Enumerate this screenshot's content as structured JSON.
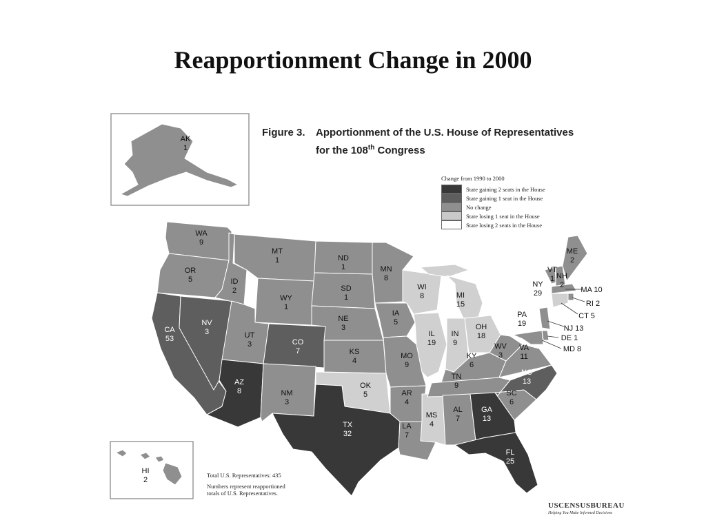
{
  "slide": {
    "title": "Reapportionment Change in 2000"
  },
  "figure": {
    "label": "Figure 3.",
    "title_line1": "Apportionment of the U.S. House of Representatives",
    "title_line2_prefix": "for the 108",
    "title_line2_sup": "th",
    "title_line2_suffix": " Congress"
  },
  "legend": {
    "title": "Change from 1990 to 2000",
    "items": [
      {
        "label": "State gaining 2 seats in the House",
        "color": "#383838"
      },
      {
        "label": "State gaining 1 seat in the House",
        "color": "#5e5e5e"
      },
      {
        "label": "No change",
        "color": "#8f8f8f"
      },
      {
        "label": "State losing 1 seat in the House",
        "color": "#c9c9c9"
      },
      {
        "label": "State losing 2 seats in the House",
        "color": "#ffffff"
      }
    ]
  },
  "footnote": {
    "total": "Total U.S. Representatives: 435",
    "note_line1": "Numbers represent reapportioned",
    "note_line2": "totals of U.S. Representatives."
  },
  "logo": {
    "name": "USCENSUSBUREAU",
    "tagline": "Helping You Make Informed Decisions"
  },
  "states": [
    {
      "abbr": "AK",
      "seats": "1",
      "change": "none"
    },
    {
      "abbr": "HI",
      "seats": "2",
      "change": "none"
    },
    {
      "abbr": "WA",
      "seats": "9",
      "change": "none"
    },
    {
      "abbr": "OR",
      "seats": "5",
      "change": "none"
    },
    {
      "abbr": "CA",
      "seats": "53",
      "change": "gain1"
    },
    {
      "abbr": "NV",
      "seats": "3",
      "change": "gain1"
    },
    {
      "abbr": "ID",
      "seats": "2",
      "change": "none"
    },
    {
      "abbr": "MT",
      "seats": "1",
      "change": "none"
    },
    {
      "abbr": "WY",
      "seats": "1",
      "change": "none"
    },
    {
      "abbr": "UT",
      "seats": "3",
      "change": "none"
    },
    {
      "abbr": "AZ",
      "seats": "8",
      "change": "gain2"
    },
    {
      "abbr": "CO",
      "seats": "7",
      "change": "gain1"
    },
    {
      "abbr": "NM",
      "seats": "3",
      "change": "none"
    },
    {
      "abbr": "ND",
      "seats": "1",
      "change": "none"
    },
    {
      "abbr": "SD",
      "seats": "1",
      "change": "none"
    },
    {
      "abbr": "NE",
      "seats": "3",
      "change": "none"
    },
    {
      "abbr": "KS",
      "seats": "4",
      "change": "none"
    },
    {
      "abbr": "OK",
      "seats": "5",
      "change": "lose1"
    },
    {
      "abbr": "TX",
      "seats": "32",
      "change": "gain2"
    },
    {
      "abbr": "MN",
      "seats": "8",
      "change": "none"
    },
    {
      "abbr": "IA",
      "seats": "5",
      "change": "none"
    },
    {
      "abbr": "MO",
      "seats": "9",
      "change": "none"
    },
    {
      "abbr": "AR",
      "seats": "4",
      "change": "none"
    },
    {
      "abbr": "LA",
      "seats": "7",
      "change": "none"
    },
    {
      "abbr": "WI",
      "seats": "8",
      "change": "lose1"
    },
    {
      "abbr": "IL",
      "seats": "19",
      "change": "lose1"
    },
    {
      "abbr": "MS",
      "seats": "4",
      "change": "lose1"
    },
    {
      "abbr": "MI",
      "seats": "15",
      "change": "lose1"
    },
    {
      "abbr": "IN",
      "seats": "9",
      "change": "lose1"
    },
    {
      "abbr": "OH",
      "seats": "18",
      "change": "lose1"
    },
    {
      "abbr": "KY",
      "seats": "6",
      "change": "none"
    },
    {
      "abbr": "TN",
      "seats": "9",
      "change": "none"
    },
    {
      "abbr": "AL",
      "seats": "7",
      "change": "none"
    },
    {
      "abbr": "GA",
      "seats": "13",
      "change": "gain2"
    },
    {
      "abbr": "FL",
      "seats": "25",
      "change": "gain2"
    },
    {
      "abbr": "SC",
      "seats": "6",
      "change": "none"
    },
    {
      "abbr": "NC",
      "seats": "13",
      "change": "gain1"
    },
    {
      "abbr": "VA",
      "seats": "11",
      "change": "none"
    },
    {
      "abbr": "WV",
      "seats": "3",
      "change": "none"
    },
    {
      "abbr": "PA",
      "seats": "19",
      "change": "lose2"
    },
    {
      "abbr": "NY",
      "seats": "29",
      "change": "lose2"
    },
    {
      "abbr": "VT",
      "seats": "1",
      "change": "none"
    },
    {
      "abbr": "NH",
      "seats": "2",
      "change": "none"
    },
    {
      "abbr": "ME",
      "seats": "2",
      "change": "none"
    },
    {
      "abbr": "MA",
      "seats": "10",
      "change": "none"
    },
    {
      "abbr": "RI",
      "seats": "2",
      "change": "none"
    },
    {
      "abbr": "CT",
      "seats": "5",
      "change": "lose1"
    },
    {
      "abbr": "NJ",
      "seats": "13",
      "change": "none"
    },
    {
      "abbr": "DE",
      "seats": "1",
      "change": "none"
    },
    {
      "abbr": "MD",
      "seats": "8",
      "change": "none"
    }
  ]
}
